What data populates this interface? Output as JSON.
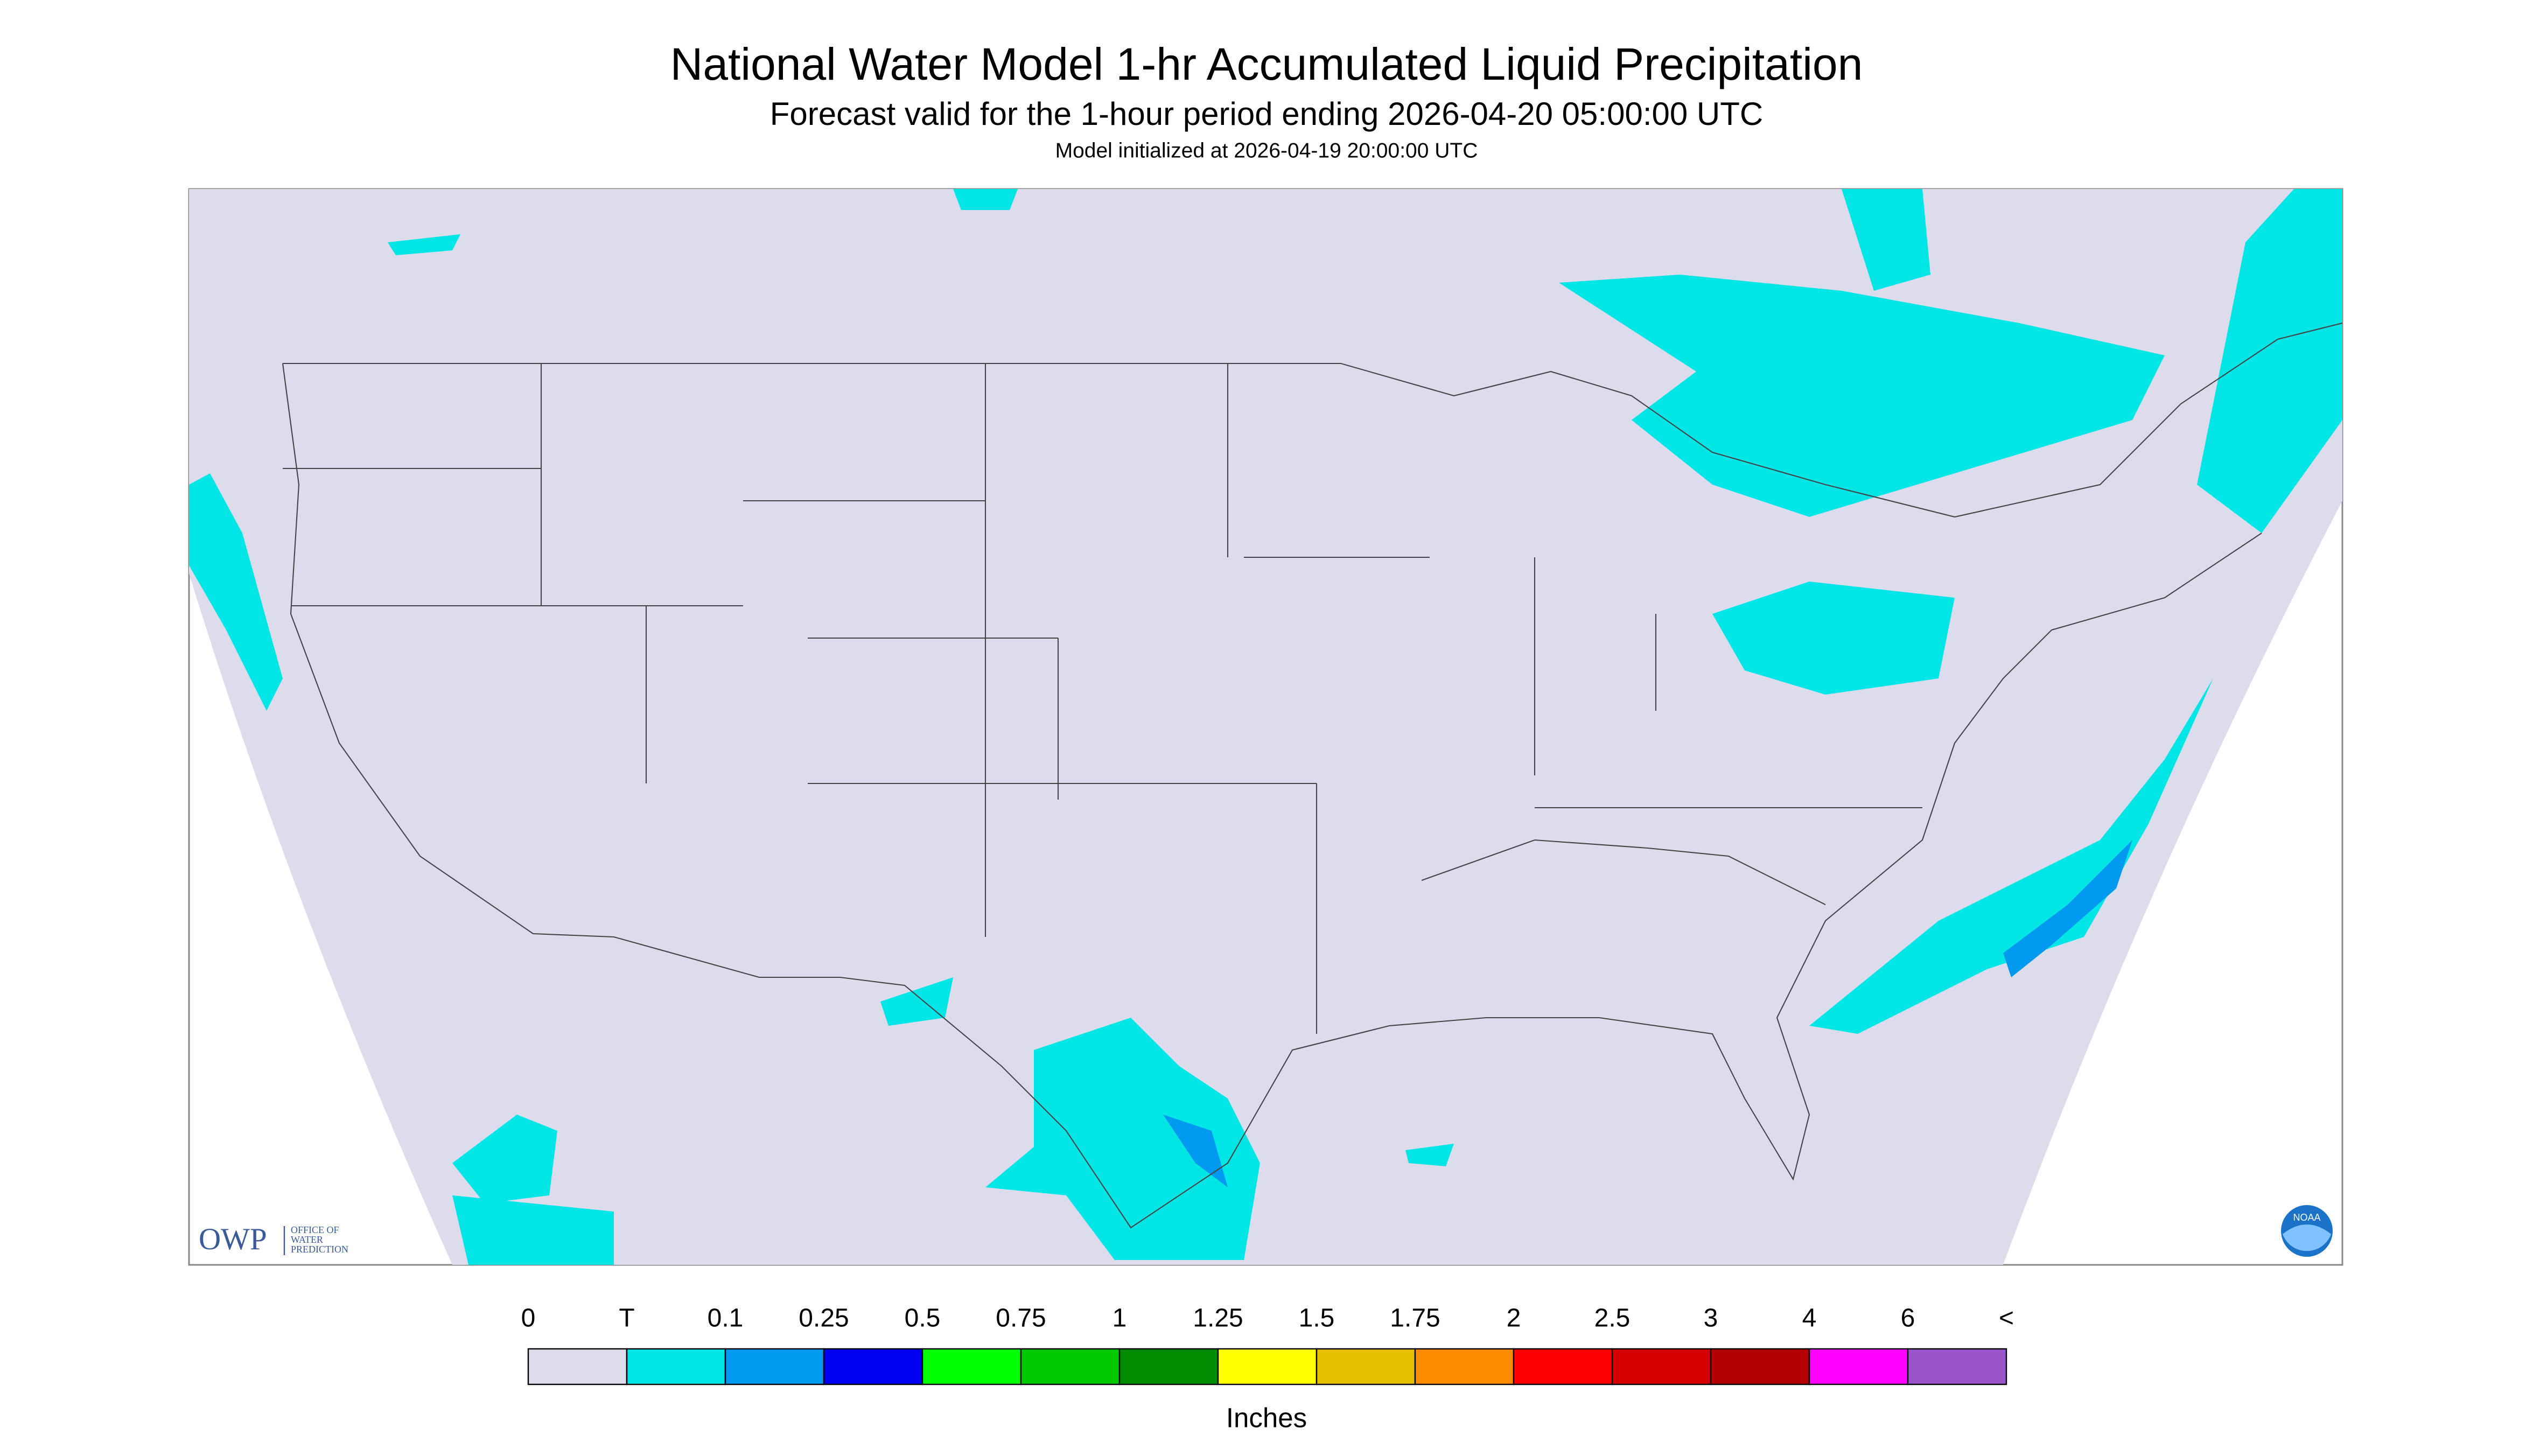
{
  "header": {
    "title": "National Water Model 1-hr Accumulated Liquid Precipitation",
    "subtitle": "Forecast valid for the 1-hour period ending 2026-04-20 05:00:00 UTC",
    "note": "Model initialized at 2026-04-19 20:00:00 UTC"
  },
  "logo": {
    "abbreviation": "OWP",
    "line1": "OFFICE OF",
    "line2": "WATER",
    "line3": "PREDICTION",
    "badge": "NOAA"
  },
  "legend": {
    "labels": [
      "0",
      "T",
      "0.1",
      "0.25",
      "0.5",
      "0.75",
      "1",
      "1.25",
      "1.5",
      "1.75",
      "2",
      "2.5",
      "3",
      "4",
      "6",
      "<"
    ],
    "colors": [
      "#dcdcec",
      "#00e6e6",
      "#0099f0",
      "#0000f0",
      "#00ff00",
      "#00c800",
      "#008c00",
      "#ffff00",
      "#e6be00",
      "#ff8c00",
      "#ff0000",
      "#d70000",
      "#b40000",
      "#ff00ff",
      "#9955c9"
    ],
    "unit": "Inches"
  }
}
